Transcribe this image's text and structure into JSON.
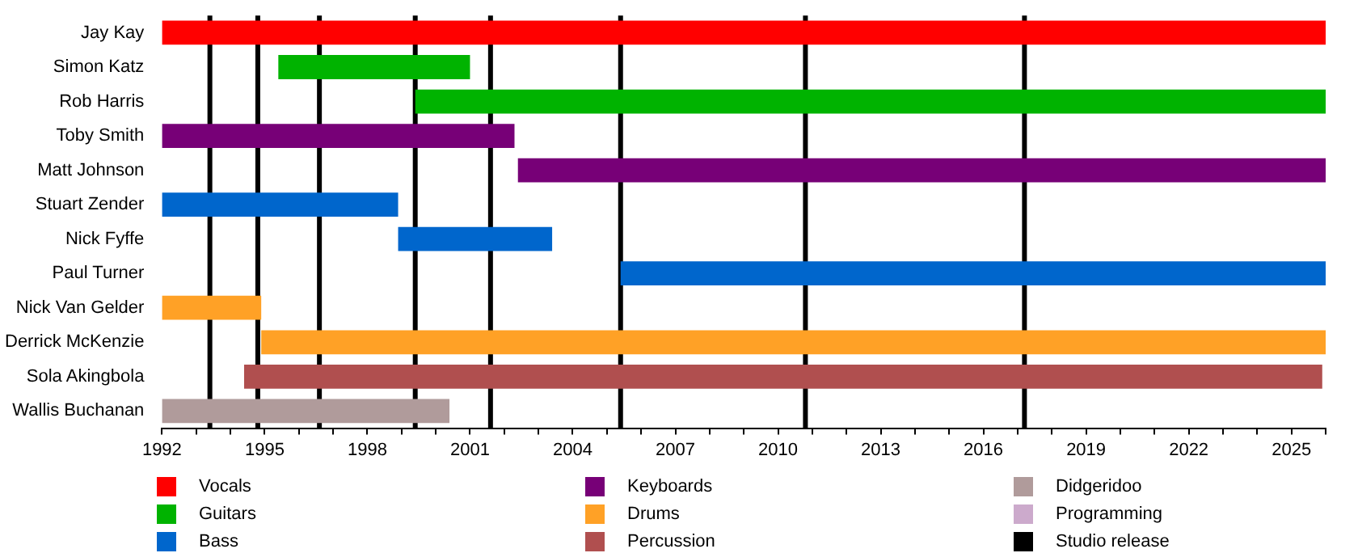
{
  "chart_data": {
    "type": "bar",
    "orientation": "horizontal",
    "grid": false,
    "legend": "bottom",
    "categories": [
      "Jay Kay",
      "Simon Katz",
      "Rob Harris",
      "Toby Smith",
      "Matt Johnson",
      "Stuart Zender",
      "Nick Fyffe",
      "Paul Turner",
      "Nick Van Gelder",
      "Derrick McKenzie",
      "Sola Akingbola",
      "Wallis Buchanan"
    ],
    "xlim": [
      1992,
      2026
    ],
    "xticks": [
      1992,
      {
        "value": 1993,
        "label": null
      },
      {
        "value": 1994,
        "label": null
      },
      1995,
      {
        "value": 1996,
        "label": null
      },
      {
        "value": 1997,
        "label": null
      },
      1998,
      {
        "value": 1999,
        "label": null
      },
      {
        "value": 2000,
        "label": null
      },
      2001,
      {
        "value": 2002,
        "label": null
      },
      {
        "value": 2003,
        "label": null
      },
      2004,
      {
        "value": 2005,
        "label": null
      },
      {
        "value": 2006,
        "label": null
      },
      2007,
      {
        "value": 2008,
        "label": null
      },
      {
        "value": 2009,
        "label": null
      },
      2010,
      {
        "value": 2011,
        "label": null
      },
      {
        "value": 2012,
        "label": null
      },
      2013,
      {
        "value": 2014,
        "label": null
      },
      {
        "value": 2015,
        "label": null
      },
      2016,
      {
        "value": 2017,
        "label": null
      },
      {
        "value": 2018,
        "label": null
      },
      2019,
      {
        "value": 2020,
        "label": null
      },
      {
        "value": 2021,
        "label": null
      },
      2022,
      {
        "value": 2023,
        "label": null
      },
      {
        "value": 2024,
        "label": null
      },
      2025,
      {
        "value": 2026,
        "label": null
      }
    ],
    "series": [
      {
        "name": "Vocals",
        "color": "#ff0000",
        "base": [
          1992,
          null,
          null,
          null,
          null,
          null,
          null,
          null,
          null,
          null,
          null,
          null
        ],
        "values": [
          34,
          null,
          null,
          null,
          null,
          null,
          null,
          null,
          null,
          null,
          null,
          null
        ]
      },
      {
        "name": "Guitars",
        "color": "#00b300",
        "base": [
          null,
          1995.4,
          1999.4,
          null,
          null,
          null,
          null,
          null,
          null,
          null,
          null,
          null
        ],
        "values": [
          null,
          5.6,
          26.6,
          null,
          null,
          null,
          null,
          null,
          null,
          null,
          null,
          null
        ]
      },
      {
        "name": "Bass",
        "color": "#0066cc",
        "base": [
          null,
          null,
          null,
          null,
          null,
          1992,
          1998.9,
          2005.4,
          null,
          null,
          null,
          null
        ],
        "values": [
          null,
          null,
          null,
          null,
          null,
          6.9,
          4.5,
          20.6,
          null,
          null,
          null,
          null
        ]
      },
      {
        "name": "Keyboards",
        "color": "#770077",
        "base": [
          null,
          null,
          null,
          1992,
          2002.4,
          null,
          null,
          null,
          null,
          null,
          null,
          null
        ],
        "values": [
          null,
          null,
          null,
          10.3,
          23.6,
          null,
          null,
          null,
          null,
          null,
          null,
          null
        ]
      },
      {
        "name": "Drums",
        "color": "#ffa126",
        "base": [
          null,
          null,
          null,
          null,
          null,
          null,
          null,
          null,
          1992,
          1994.9,
          null,
          null
        ],
        "values": [
          null,
          null,
          null,
          null,
          null,
          null,
          null,
          null,
          2.9,
          31.1,
          null,
          null
        ]
      },
      {
        "name": "Percussion",
        "color": "#b04f4f",
        "base": [
          null,
          null,
          null,
          null,
          null,
          null,
          null,
          null,
          null,
          null,
          1994.4,
          null
        ],
        "values": [
          null,
          null,
          null,
          null,
          null,
          null,
          null,
          null,
          null,
          null,
          31.5,
          null
        ]
      },
      {
        "name": "Didgeridoo",
        "color": "#b09b9b",
        "base": [
          null,
          null,
          null,
          null,
          null,
          null,
          null,
          null,
          null,
          null,
          null,
          1992
        ],
        "values": [
          null,
          null,
          null,
          null,
          null,
          null,
          null,
          null,
          null,
          null,
          null,
          8.4
        ]
      },
      {
        "name": "Programming",
        "color": "#ccaacc",
        "values": [
          null,
          null,
          null,
          null,
          null,
          null,
          null,
          null,
          null,
          null,
          null,
          null
        ]
      },
      {
        "name": "Studio release",
        "color": "#000000",
        "values": [
          null,
          null,
          null,
          null,
          null,
          null,
          null,
          null,
          null,
          null,
          null,
          null
        ]
      }
    ],
    "ref_lines": [
      {
        "axis": "x",
        "value": 1993.4,
        "color": "#000000"
      },
      {
        "axis": "x",
        "value": 1994.8,
        "color": "#000000"
      },
      {
        "axis": "x",
        "value": 1996.6,
        "color": "#000000"
      },
      {
        "axis": "x",
        "value": 1999.4,
        "color": "#000000"
      },
      {
        "axis": "x",
        "value": 2001.6,
        "color": "#000000"
      },
      {
        "axis": "x",
        "value": 2005.4,
        "color": "#000000"
      },
      {
        "axis": "x",
        "value": 2010.8,
        "color": "#000000"
      },
      {
        "axis": "x",
        "value": 2017.2,
        "color": "#000000"
      }
    ]
  }
}
